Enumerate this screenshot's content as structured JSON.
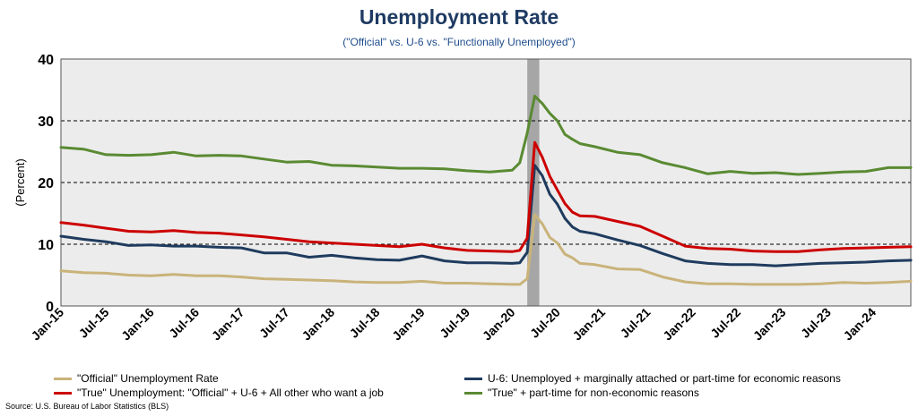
{
  "title": "Unemployment Rate",
  "subtitle": "(\"Official\" vs. U-6 vs. \"Functionally Unemployed\")",
  "source": "Source: U.S. Bureau of Labor Statistics (BLS)",
  "colors": {
    "official": "#c9b37a",
    "u6": "#1f3b5e",
    "true": "#cc0000",
    "functional": "#5a8a32",
    "plot_bg": "#ececec",
    "recession": "#a6a6a6"
  },
  "chart_data": {
    "type": "line",
    "title": "Unemployment Rate",
    "subtitle": "(\"Official\" vs. U-6 vs. \"Functionally Unemployed\")",
    "ylabel": "(Percent)",
    "xlabel": "",
    "ylim": [
      0,
      40
    ],
    "yticks": [
      "0",
      "10",
      "20",
      "30",
      "40"
    ],
    "gridlines": "dashed at 10, 20, 30",
    "xticks": [
      "Jan-15",
      "Jul-15",
      "Jan-16",
      "Jul-16",
      "Jan-17",
      "Jul-17",
      "Jan-18",
      "Jul-18",
      "Jan-19",
      "Jul-19",
      "Jan-20",
      "Jul-20",
      "Jan-21",
      "Jul-21",
      "Jan-22",
      "Jul-22",
      "Jan-23",
      "Jul-23",
      "Jan-24"
    ],
    "x_start": "2015-01",
    "x_end": "2024-06",
    "recession_shading": [
      "2020-03",
      "2020-04"
    ],
    "legend_position": "bottom",
    "series": [
      {
        "name": "\"Official\" Unemployment Rate",
        "key": "official",
        "points": [
          [
            "2015-01",
            5.7
          ],
          [
            "2015-04",
            5.4
          ],
          [
            "2015-07",
            5.3
          ],
          [
            "2015-10",
            5.0
          ],
          [
            "2016-01",
            4.9
          ],
          [
            "2016-04",
            5.1
          ],
          [
            "2016-07",
            4.9
          ],
          [
            "2016-10",
            4.9
          ],
          [
            "2017-01",
            4.7
          ],
          [
            "2017-04",
            4.4
          ],
          [
            "2017-07",
            4.3
          ],
          [
            "2017-10",
            4.2
          ],
          [
            "2018-01",
            4.1
          ],
          [
            "2018-04",
            3.9
          ],
          [
            "2018-07",
            3.8
          ],
          [
            "2018-10",
            3.8
          ],
          [
            "2019-01",
            4.0
          ],
          [
            "2019-04",
            3.7
          ],
          [
            "2019-07",
            3.7
          ],
          [
            "2019-10",
            3.6
          ],
          [
            "2020-01",
            3.5
          ],
          [
            "2020-02",
            3.5
          ],
          [
            "2020-03",
            4.4
          ],
          [
            "2020-04",
            14.8
          ],
          [
            "2020-05",
            13.3
          ],
          [
            "2020-06",
            11.1
          ],
          [
            "2020-07",
            10.2
          ],
          [
            "2020-08",
            8.4
          ],
          [
            "2020-09",
            7.8
          ],
          [
            "2020-10",
            6.9
          ],
          [
            "2020-12",
            6.7
          ],
          [
            "2021-03",
            6.0
          ],
          [
            "2021-06",
            5.9
          ],
          [
            "2021-09",
            4.7
          ],
          [
            "2021-12",
            3.9
          ],
          [
            "2022-03",
            3.6
          ],
          [
            "2022-06",
            3.6
          ],
          [
            "2022-09",
            3.5
          ],
          [
            "2022-12",
            3.5
          ],
          [
            "2023-03",
            3.5
          ],
          [
            "2023-06",
            3.6
          ],
          [
            "2023-09",
            3.8
          ],
          [
            "2023-12",
            3.7
          ],
          [
            "2024-03",
            3.8
          ],
          [
            "2024-06",
            4.0
          ]
        ]
      },
      {
        "name": "U-6: Unemployed + marginally attached or part-time for economic reasons",
        "key": "u6",
        "points": [
          [
            "2015-01",
            11.3
          ],
          [
            "2015-04",
            10.8
          ],
          [
            "2015-07",
            10.4
          ],
          [
            "2015-10",
            9.8
          ],
          [
            "2016-01",
            9.9
          ],
          [
            "2016-04",
            9.7
          ],
          [
            "2016-07",
            9.7
          ],
          [
            "2016-10",
            9.5
          ],
          [
            "2017-01",
            9.4
          ],
          [
            "2017-04",
            8.6
          ],
          [
            "2017-07",
            8.6
          ],
          [
            "2017-10",
            7.9
          ],
          [
            "2018-01",
            8.2
          ],
          [
            "2018-04",
            7.8
          ],
          [
            "2018-07",
            7.5
          ],
          [
            "2018-10",
            7.4
          ],
          [
            "2019-01",
            8.1
          ],
          [
            "2019-04",
            7.3
          ],
          [
            "2019-07",
            7.0
          ],
          [
            "2019-10",
            7.0
          ],
          [
            "2020-01",
            6.9
          ],
          [
            "2020-02",
            7.0
          ],
          [
            "2020-03",
            8.7
          ],
          [
            "2020-04",
            22.8
          ],
          [
            "2020-05",
            21.1
          ],
          [
            "2020-06",
            18.1
          ],
          [
            "2020-07",
            16.5
          ],
          [
            "2020-08",
            14.2
          ],
          [
            "2020-09",
            12.8
          ],
          [
            "2020-10",
            12.1
          ],
          [
            "2020-12",
            11.7
          ],
          [
            "2021-03",
            10.7
          ],
          [
            "2021-06",
            9.8
          ],
          [
            "2021-09",
            8.5
          ],
          [
            "2021-12",
            7.3
          ],
          [
            "2022-03",
            6.9
          ],
          [
            "2022-06",
            6.7
          ],
          [
            "2022-09",
            6.7
          ],
          [
            "2022-12",
            6.5
          ],
          [
            "2023-03",
            6.7
          ],
          [
            "2023-06",
            6.9
          ],
          [
            "2023-09",
            7.0
          ],
          [
            "2023-12",
            7.1
          ],
          [
            "2024-03",
            7.3
          ],
          [
            "2024-06",
            7.4
          ]
        ]
      },
      {
        "name": "\"True\" Unemployment: \"Official\" + U-6 + All other who want a job",
        "key": "true",
        "points": [
          [
            "2015-01",
            13.5
          ],
          [
            "2015-04",
            13.1
          ],
          [
            "2015-07",
            12.6
          ],
          [
            "2015-10",
            12.1
          ],
          [
            "2016-01",
            12.0
          ],
          [
            "2016-04",
            12.2
          ],
          [
            "2016-07",
            11.9
          ],
          [
            "2016-10",
            11.8
          ],
          [
            "2017-01",
            11.5
          ],
          [
            "2017-04",
            11.2
          ],
          [
            "2017-07",
            10.8
          ],
          [
            "2017-10",
            10.4
          ],
          [
            "2018-01",
            10.2
          ],
          [
            "2018-04",
            10.0
          ],
          [
            "2018-07",
            9.8
          ],
          [
            "2018-10",
            9.6
          ],
          [
            "2019-01",
            10.0
          ],
          [
            "2019-04",
            9.4
          ],
          [
            "2019-07",
            9.0
          ],
          [
            "2019-10",
            8.9
          ],
          [
            "2020-01",
            8.8
          ],
          [
            "2020-02",
            9.0
          ],
          [
            "2020-03",
            11.0
          ],
          [
            "2020-04",
            26.5
          ],
          [
            "2020-05",
            24.1
          ],
          [
            "2020-06",
            21.0
          ],
          [
            "2020-07",
            18.8
          ],
          [
            "2020-08",
            16.6
          ],
          [
            "2020-09",
            15.2
          ],
          [
            "2020-10",
            14.6
          ],
          [
            "2020-12",
            14.5
          ],
          [
            "2021-03",
            13.7
          ],
          [
            "2021-06",
            12.9
          ],
          [
            "2021-09",
            11.3
          ],
          [
            "2021-12",
            9.7
          ],
          [
            "2022-03",
            9.3
          ],
          [
            "2022-06",
            9.2
          ],
          [
            "2022-09",
            8.9
          ],
          [
            "2022-12",
            8.8
          ],
          [
            "2023-03",
            8.8
          ],
          [
            "2023-06",
            9.1
          ],
          [
            "2023-09",
            9.3
          ],
          [
            "2023-12",
            9.4
          ],
          [
            "2024-03",
            9.5
          ],
          [
            "2024-06",
            9.6
          ]
        ]
      },
      {
        "name": "\"True\" + part-time for non-economic reasons",
        "key": "functional",
        "points": [
          [
            "2015-01",
            25.7
          ],
          [
            "2015-04",
            25.4
          ],
          [
            "2015-07",
            24.5
          ],
          [
            "2015-10",
            24.4
          ],
          [
            "2016-01",
            24.5
          ],
          [
            "2016-04",
            24.9
          ],
          [
            "2016-07",
            24.3
          ],
          [
            "2016-10",
            24.4
          ],
          [
            "2017-01",
            24.3
          ],
          [
            "2017-04",
            23.8
          ],
          [
            "2017-07",
            23.3
          ],
          [
            "2017-10",
            23.4
          ],
          [
            "2018-01",
            22.8
          ],
          [
            "2018-04",
            22.7
          ],
          [
            "2018-07",
            22.5
          ],
          [
            "2018-10",
            22.3
          ],
          [
            "2019-01",
            22.3
          ],
          [
            "2019-04",
            22.2
          ],
          [
            "2019-07",
            21.9
          ],
          [
            "2019-10",
            21.7
          ],
          [
            "2020-01",
            22.0
          ],
          [
            "2020-02",
            23.2
          ],
          [
            "2020-03",
            28.0
          ],
          [
            "2020-04",
            34.0
          ],
          [
            "2020-05",
            32.8
          ],
          [
            "2020-06",
            31.2
          ],
          [
            "2020-07",
            30.0
          ],
          [
            "2020-08",
            27.8
          ],
          [
            "2020-09",
            27.0
          ],
          [
            "2020-10",
            26.3
          ],
          [
            "2020-12",
            25.8
          ],
          [
            "2021-03",
            24.9
          ],
          [
            "2021-06",
            24.5
          ],
          [
            "2021-09",
            23.2
          ],
          [
            "2021-12",
            22.4
          ],
          [
            "2022-03",
            21.4
          ],
          [
            "2022-06",
            21.8
          ],
          [
            "2022-09",
            21.5
          ],
          [
            "2022-12",
            21.6
          ],
          [
            "2023-03",
            21.3
          ],
          [
            "2023-06",
            21.5
          ],
          [
            "2023-09",
            21.7
          ],
          [
            "2023-12",
            21.8
          ],
          [
            "2024-03",
            22.4
          ],
          [
            "2024-06",
            22.4
          ]
        ]
      }
    ]
  }
}
